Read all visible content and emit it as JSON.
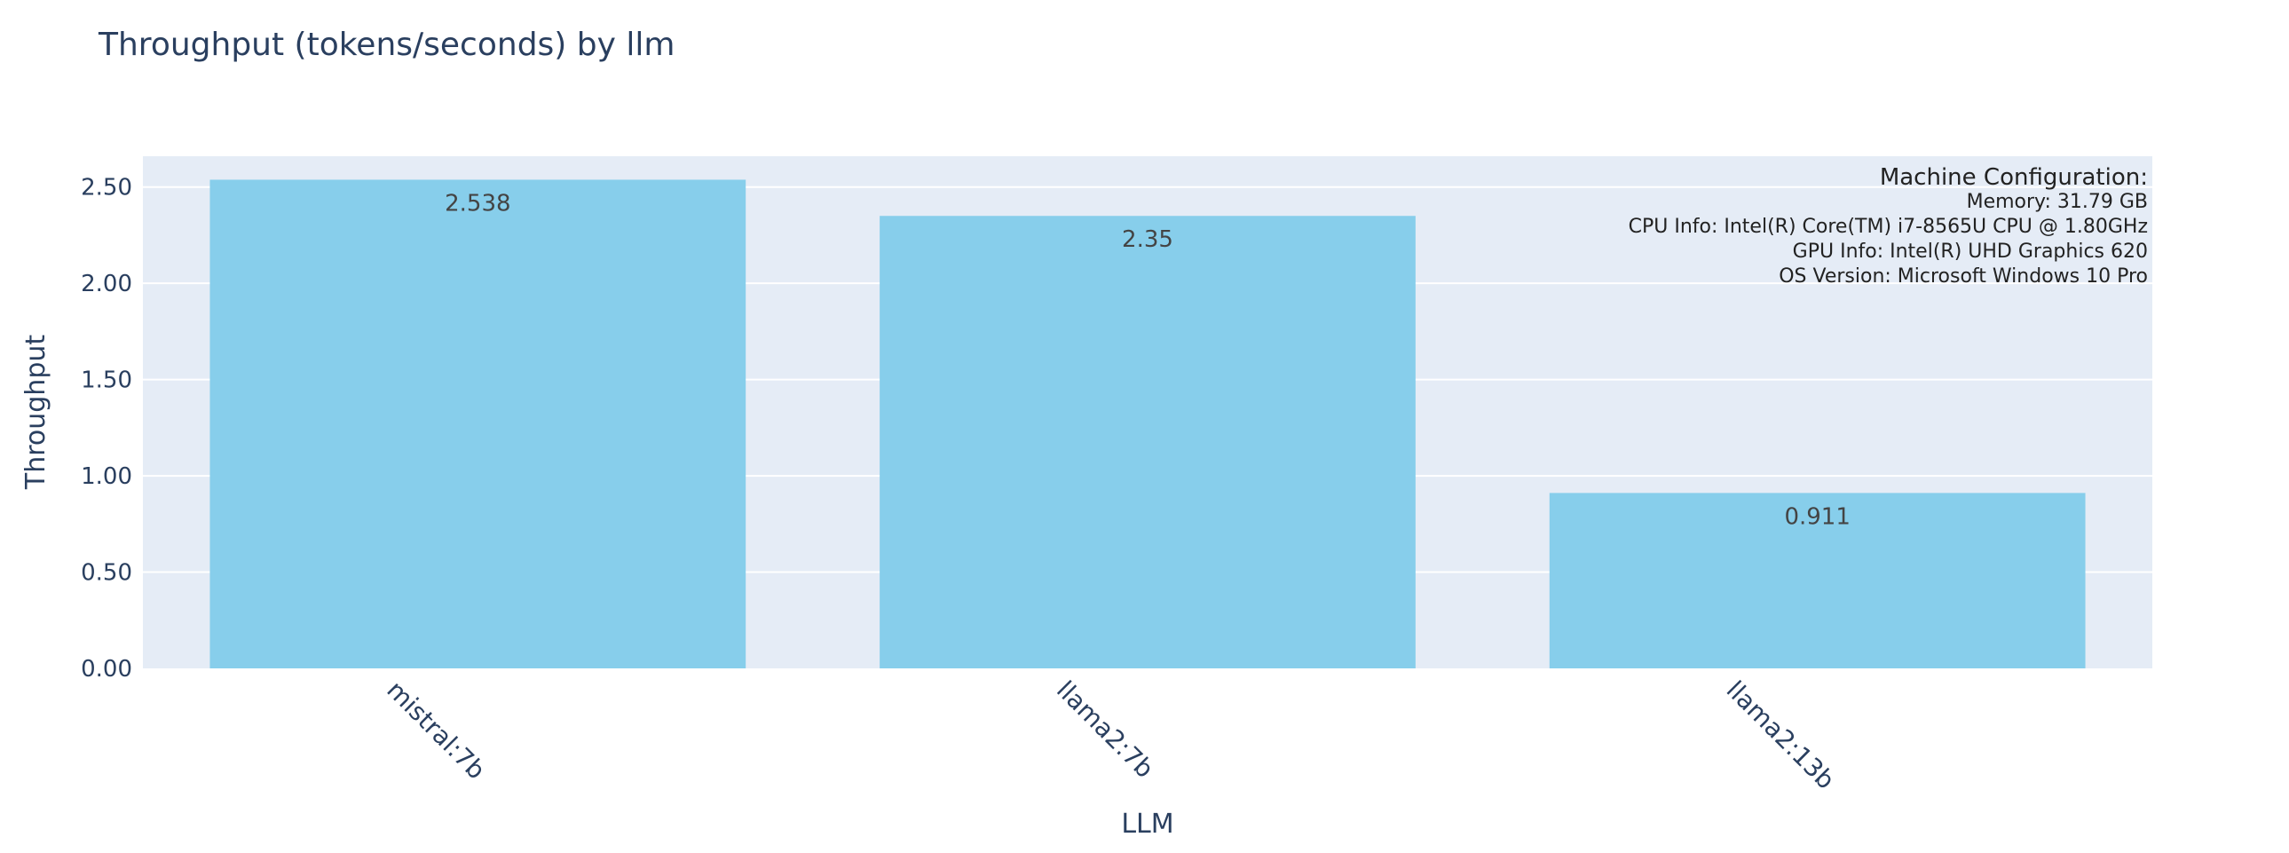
{
  "chart_data": {
    "type": "bar",
    "title": "Throughput (tokens/seconds) by llm",
    "xlabel": "LLM",
    "ylabel": "Throughput",
    "categories": [
      "mistral:7b",
      "llama2:7b",
      "llama2:13b"
    ],
    "values": [
      2.538,
      2.35,
      0.911
    ],
    "value_labels": [
      "2.538",
      "2.35",
      "0.911"
    ],
    "ylim": [
      0,
      2.66
    ],
    "yticks": [
      0,
      0.5,
      1,
      1.5,
      2,
      2.5
    ],
    "ytick_labels": [
      "0.00",
      "0.50",
      "1.00",
      "1.50",
      "2.00",
      "2.50"
    ],
    "grid": true,
    "colors": {
      "bar": "#87ceeb",
      "plot_bg": "#e5ecf6",
      "grid": "#ffffff",
      "text": "#2a3f5f"
    },
    "annotation": {
      "heading": "Machine Configuration:",
      "lines": [
        "Memory: 31.79 GB",
        "CPU Info: Intel(R) Core(TM) i7-8565U CPU @ 1.80GHz",
        "GPU Info: Intel(R) UHD Graphics 620",
        "OS Version: Microsoft Windows 10 Pro"
      ],
      "placement": "top-right"
    }
  }
}
